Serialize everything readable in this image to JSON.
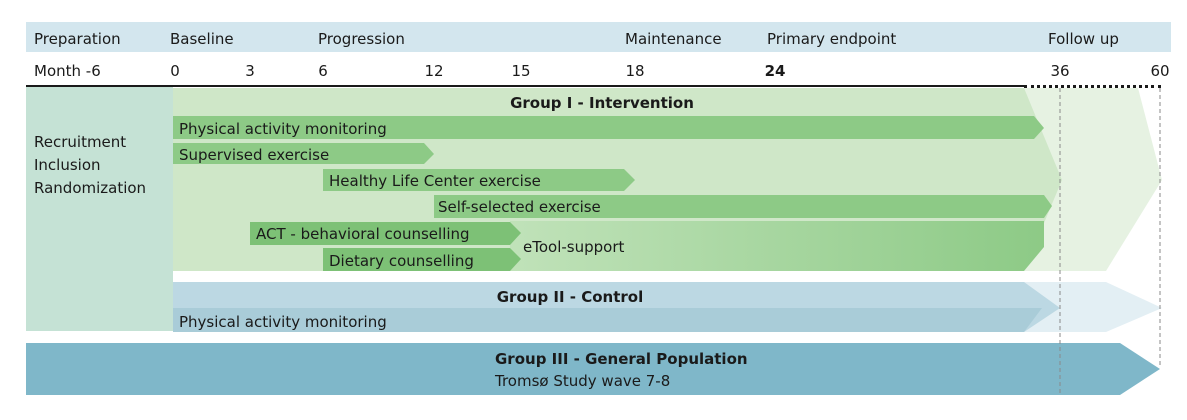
{
  "phases": {
    "preparation": "Preparation",
    "baseline": "Baseline",
    "progression": "Progression",
    "maintenance": "Maintenance",
    "primary_endpoint": "Primary endpoint",
    "follow_up": "Follow up"
  },
  "timeline": {
    "month_label": "Month -6",
    "ticks": [
      "0",
      "3",
      "6",
      "12",
      "15",
      "18",
      "24",
      "36",
      "60"
    ]
  },
  "recruitment": {
    "line1": "Recruitment",
    "line2": "Inclusion",
    "line3": "Randomization"
  },
  "group1": {
    "title": "Group I - Intervention",
    "bars": {
      "pa_monitoring": "Physical activity monitoring",
      "supervised": "Supervised exercise",
      "hlc": "Healthy Life Center exercise",
      "self_selected": "Self-selected exercise",
      "act": "ACT - behavioral counselling",
      "dietary": "Dietary counselling",
      "etool": "eTool-support"
    }
  },
  "group2": {
    "title": "Group II - Control",
    "bar": "Physical activity monitoring"
  },
  "group3": {
    "title": "Group III - General Population",
    "subtitle": "Tromsø Study wave 7-8"
  },
  "colors": {
    "phase_band": "#d3e6ee",
    "recruitment": "#c5e2d5",
    "group1_light": "#cfe7c8",
    "group1_fade": "#e6f2e2",
    "bar_green": "#8dca86",
    "bar_green_dark": "#7dc176",
    "group2": "#bcd8e3",
    "group2_fade": "#e3eff4",
    "group2_bar": "#a9ccd8",
    "group3": "#7fb7c9"
  }
}
